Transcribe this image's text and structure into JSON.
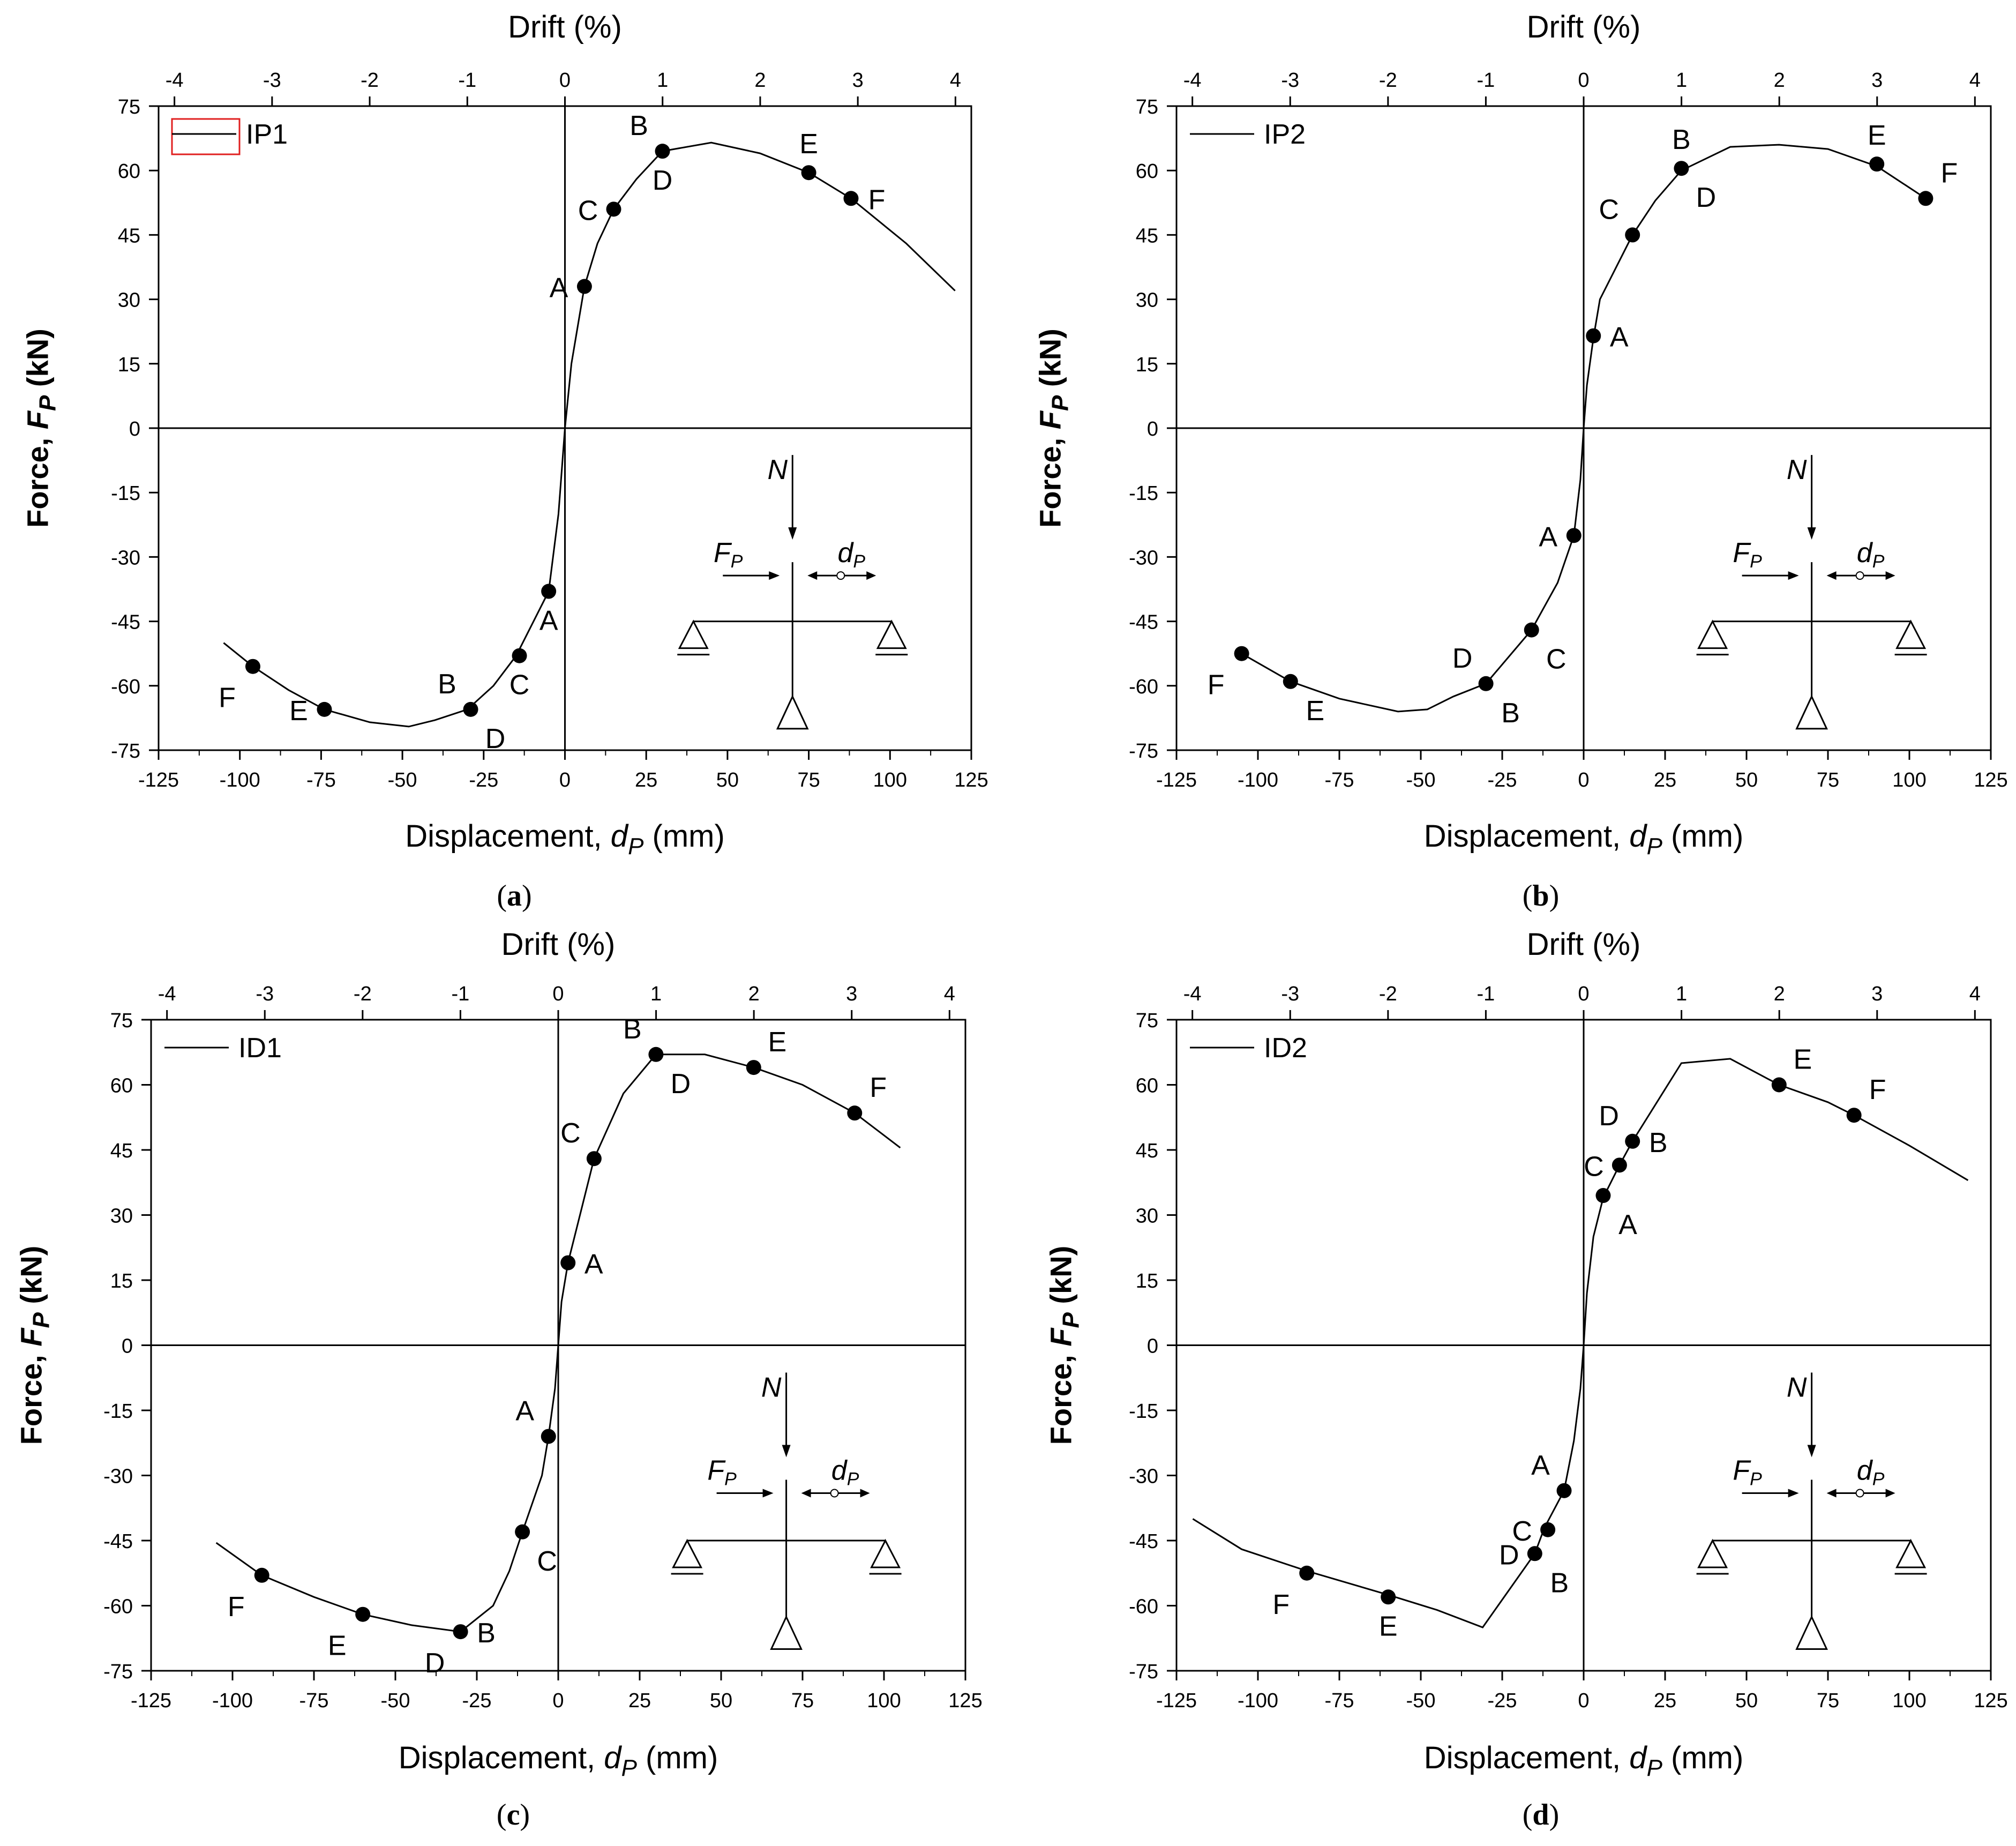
{
  "chart_data": [
    {
      "type": "line",
      "panel_label": "(a)",
      "label_letter": "a",
      "legend": "IP1",
      "legend_box_color": "#e02020",
      "xlabel_prefix": "Displacement, ",
      "xlabel_var": "d",
      "xlabel_sub": "P",
      "xlabel_suffix": " (mm)",
      "ylabel_prefix": "Force, ",
      "ylabel_var": "F",
      "ylabel_sub": "P",
      "ylabel_suffix": " (kN)",
      "top_label": "Drift (%)",
      "xlim": [
        -125,
        125
      ],
      "ylim": [
        -75,
        75
      ],
      "xticks": [
        -125,
        -100,
        -75,
        -50,
        -25,
        0,
        25,
        50,
        75,
        100,
        125
      ],
      "yticks": [
        -75,
        -60,
        -45,
        -30,
        -15,
        0,
        15,
        30,
        45,
        60,
        75
      ],
      "drift_ticks": [
        -4,
        -3,
        -2,
        -1,
        0,
        1,
        2,
        3,
        4
      ],
      "drift_per_mm": 0.0333,
      "curve": [
        [
          -105,
          -50
        ],
        [
          -96,
          -55.5
        ],
        [
          -85,
          -61
        ],
        [
          -74,
          -65.5
        ],
        [
          -60,
          -68.5
        ],
        [
          -48,
          -69.5
        ],
        [
          -40,
          -68
        ],
        [
          -30,
          -65.5
        ],
        [
          -22,
          -60
        ],
        [
          -15,
          -53
        ],
        [
          -5,
          -38
        ],
        [
          -2,
          -20
        ],
        [
          0,
          0
        ],
        [
          2,
          15
        ],
        [
          6,
          33
        ],
        [
          10,
          43
        ],
        [
          15,
          51
        ],
        [
          22,
          58
        ],
        [
          30,
          64.5
        ],
        [
          45,
          66.5
        ],
        [
          60,
          64
        ],
        [
          75,
          59.5
        ],
        [
          88,
          53.5
        ],
        [
          105,
          43
        ],
        [
          120,
          32
        ]
      ],
      "points": [
        {
          "label": "A",
          "x": 6,
          "y": 33,
          "pos": "left"
        },
        {
          "label": "C",
          "x": 15,
          "y": 51,
          "pos": "left"
        },
        {
          "label": "B",
          "x": 30,
          "y": 64.5,
          "pos": "upleft"
        },
        {
          "label": "D",
          "x": 30,
          "y": 64.5,
          "pos": "below"
        },
        {
          "label": "E",
          "x": 75,
          "y": 59.5,
          "pos": "up"
        },
        {
          "label": "F",
          "x": 88,
          "y": 53.5,
          "pos": "right"
        },
        {
          "label": "A",
          "x": -5,
          "y": -38,
          "pos": "below"
        },
        {
          "label": "C",
          "x": -14,
          "y": -53,
          "pos": "below"
        },
        {
          "label": "B",
          "x": -29,
          "y": -65.5,
          "pos": "upleft"
        },
        {
          "label": "D",
          "x": -29,
          "y": -65.5,
          "pos": "belowright"
        },
        {
          "label": "E",
          "x": -74,
          "y": -65.5,
          "pos": "left"
        },
        {
          "label": "F",
          "x": -96,
          "y": -55.5,
          "pos": "belowleft"
        }
      ]
    },
    {
      "type": "line",
      "panel_label": "(b)",
      "label_letter": "b",
      "legend": "IP2",
      "xlabel_prefix": "Displacement, ",
      "xlabel_var": "d",
      "xlabel_sub": "P",
      "xlabel_suffix": " (mm)",
      "ylabel_prefix": "Force, ",
      "ylabel_var": "F",
      "ylabel_sub": "P",
      "ylabel_suffix": " (kN)",
      "top_label": "Drift (%)",
      "xlim": [
        -125,
        125
      ],
      "ylim": [
        -75,
        75
      ],
      "xticks": [
        -125,
        -100,
        -75,
        -50,
        -25,
        0,
        25,
        50,
        75,
        100,
        125
      ],
      "yticks": [
        -75,
        -60,
        -45,
        -30,
        -15,
        0,
        15,
        30,
        45,
        60,
        75
      ],
      "drift_ticks": [
        -4,
        -3,
        -2,
        -1,
        0,
        1,
        2,
        3,
        4
      ],
      "drift_per_mm": 0.0333,
      "curve": [
        [
          -105,
          -52.5
        ],
        [
          -90,
          -59
        ],
        [
          -75,
          -63
        ],
        [
          -57,
          -66
        ],
        [
          -48,
          -65.5
        ],
        [
          -40,
          -62.5
        ],
        [
          -30,
          -59.5
        ],
        [
          -16,
          -47
        ],
        [
          -8,
          -36
        ],
        [
          -3,
          -25
        ],
        [
          -1,
          -12
        ],
        [
          0,
          0
        ],
        [
          1,
          10
        ],
        [
          3,
          21
        ],
        [
          5,
          30
        ],
        [
          15,
          45
        ],
        [
          22,
          53
        ],
        [
          30,
          60
        ],
        [
          45,
          65.5
        ],
        [
          60,
          66
        ],
        [
          75,
          65
        ],
        [
          90,
          61
        ],
        [
          98,
          57
        ],
        [
          105,
          53.5
        ]
      ],
      "points": [
        {
          "label": "A",
          "x": 3,
          "y": 21.5,
          "pos": "right"
        },
        {
          "label": "C",
          "x": 15,
          "y": 45,
          "pos": "upleft"
        },
        {
          "label": "B",
          "x": 30,
          "y": 60.5,
          "pos": "up"
        },
        {
          "label": "D",
          "x": 30,
          "y": 60.5,
          "pos": "belowright"
        },
        {
          "label": "E",
          "x": 90,
          "y": 61.5,
          "pos": "up"
        },
        {
          "label": "F",
          "x": 105,
          "y": 53.5,
          "pos": "upright"
        },
        {
          "label": "A",
          "x": -3,
          "y": -25,
          "pos": "left"
        },
        {
          "label": "C",
          "x": -16,
          "y": -47,
          "pos": "belowright"
        },
        {
          "label": "D",
          "x": -30,
          "y": -59.5,
          "pos": "upleft"
        },
        {
          "label": "B",
          "x": -30,
          "y": -59.5,
          "pos": "belowright"
        },
        {
          "label": "E",
          "x": -90,
          "y": -59,
          "pos": "belowright"
        },
        {
          "label": "F",
          "x": -105,
          "y": -52.5,
          "pos": "belowleft"
        }
      ]
    },
    {
      "type": "line",
      "panel_label": "(c)",
      "label_letter": "c",
      "legend": "ID1",
      "xlabel_prefix": "Displacement, ",
      "xlabel_var": "d",
      "xlabel_sub": "P",
      "xlabel_suffix": " (mm)",
      "ylabel_prefix": "Force, ",
      "ylabel_var": "F",
      "ylabel_sub": "P",
      "ylabel_suffix": " (kN)",
      "top_label": "Drift (%)",
      "xlim": [
        -125,
        125
      ],
      "ylim": [
        -75,
        75
      ],
      "xticks": [
        -125,
        -100,
        -75,
        -50,
        -25,
        0,
        25,
        50,
        75,
        100,
        125
      ],
      "yticks": [
        -75,
        -60,
        -45,
        -30,
        -15,
        0,
        15,
        30,
        45,
        60,
        75
      ],
      "drift_ticks": [
        -4,
        -3,
        -2,
        -1,
        0,
        1,
        2,
        3,
        4
      ],
      "drift_per_mm": 0.0333,
      "curve": [
        [
          -105,
          -45.5
        ],
        [
          -91,
          -53
        ],
        [
          -75,
          -58
        ],
        [
          -60,
          -62
        ],
        [
          -45,
          -64.5
        ],
        [
          -30,
          -66
        ],
        [
          -20,
          -60
        ],
        [
          -15,
          -52
        ],
        [
          -11,
          -43
        ],
        [
          -5,
          -30
        ],
        [
          -3,
          -21
        ],
        [
          -1,
          -10
        ],
        [
          0,
          0
        ],
        [
          1,
          10
        ],
        [
          3,
          19
        ],
        [
          7,
          31
        ],
        [
          11,
          43
        ],
        [
          20,
          58
        ],
        [
          30,
          67
        ],
        [
          45,
          67
        ],
        [
          60,
          64
        ],
        [
          75,
          60
        ],
        [
          91,
          53.5
        ],
        [
          105,
          45.5
        ]
      ],
      "points": [
        {
          "label": "A",
          "x": 3,
          "y": 19,
          "pos": "right"
        },
        {
          "label": "C",
          "x": 11,
          "y": 43,
          "pos": "upleft"
        },
        {
          "label": "B",
          "x": 30,
          "y": 67,
          "pos": "upleft"
        },
        {
          "label": "D",
          "x": 30,
          "y": 67,
          "pos": "belowright"
        },
        {
          "label": "E",
          "x": 60,
          "y": 64,
          "pos": "upright"
        },
        {
          "label": "F",
          "x": 91,
          "y": 53.5,
          "pos": "upright"
        },
        {
          "label": "A",
          "x": -3,
          "y": -21,
          "pos": "upleft"
        },
        {
          "label": "C",
          "x": -11,
          "y": -43,
          "pos": "belowright"
        },
        {
          "label": "D",
          "x": -30,
          "y": -66,
          "pos": "belowleft"
        },
        {
          "label": "B",
          "x": -30,
          "y": -66,
          "pos": "right"
        },
        {
          "label": "E",
          "x": -60,
          "y": -62,
          "pos": "belowleft"
        },
        {
          "label": "F",
          "x": -91,
          "y": -53,
          "pos": "belowleft"
        }
      ]
    },
    {
      "type": "line",
      "panel_label": "(d)",
      "label_letter": "d",
      "legend": "ID2",
      "xlabel_prefix": "Displacement, ",
      "xlabel_var": "d",
      "xlabel_sub": "P",
      "xlabel_suffix": " (mm)",
      "ylabel_prefix": "Force, ",
      "ylabel_var": "F",
      "ylabel_sub": "P",
      "ylabel_suffix": " (kN)",
      "top_label": "Drift (%)",
      "xlim": [
        -125,
        125
      ],
      "ylim": [
        -75,
        75
      ],
      "xticks": [
        -125,
        -100,
        -75,
        -50,
        -25,
        0,
        25,
        50,
        75,
        100,
        125
      ],
      "yticks": [
        -75,
        -60,
        -45,
        -30,
        -15,
        0,
        15,
        30,
        45,
        60,
        75
      ],
      "drift_ticks": [
        -4,
        -3,
        -2,
        -1,
        0,
        1,
        2,
        3,
        4
      ],
      "drift_per_mm": 0.0333,
      "curve": [
        [
          -120,
          -40
        ],
        [
          -105,
          -47
        ],
        [
          -85,
          -52
        ],
        [
          -60,
          -57.5
        ],
        [
          -45,
          -61
        ],
        [
          -31,
          -65
        ],
        [
          -15,
          -48
        ],
        [
          -12,
          -42
        ],
        [
          -6,
          -33.5
        ],
        [
          -3,
          -22
        ],
        [
          -1,
          -10
        ],
        [
          0,
          0
        ],
        [
          1,
          12
        ],
        [
          3,
          25
        ],
        [
          6,
          34
        ],
        [
          11,
          41.5
        ],
        [
          15,
          47
        ],
        [
          30,
          65
        ],
        [
          45,
          66
        ],
        [
          60,
          60
        ],
        [
          75,
          56
        ],
        [
          83,
          53
        ],
        [
          100,
          46
        ],
        [
          118,
          38
        ]
      ],
      "points": [
        {
          "label": "A",
          "x": 6,
          "y": 34.5,
          "pos": "belowright"
        },
        {
          "label": "C",
          "x": 11,
          "y": 41.5,
          "pos": "left"
        },
        {
          "label": "D",
          "x": 15,
          "y": 47,
          "pos": "upleft"
        },
        {
          "label": "B",
          "x": 15,
          "y": 47,
          "pos": "right"
        },
        {
          "label": "E",
          "x": 60,
          "y": 60,
          "pos": "upright"
        },
        {
          "label": "F",
          "x": 83,
          "y": 53,
          "pos": "upright"
        },
        {
          "label": "A",
          "x": -6,
          "y": -33.5,
          "pos": "upleft"
        },
        {
          "label": "C",
          "x": -11,
          "y": -42.5,
          "pos": "left"
        },
        {
          "label": "D",
          "x": -15,
          "y": -48,
          "pos": "left"
        },
        {
          "label": "B",
          "x": -15,
          "y": -48,
          "pos": "belowright"
        },
        {
          "label": "E",
          "x": -60,
          "y": -58,
          "pos": "below"
        },
        {
          "label": "F",
          "x": -85,
          "y": -52.5,
          "pos": "belowleft"
        }
      ]
    }
  ],
  "schematic": {
    "axial_label": "N",
    "force_var": "F",
    "force_sub": "P",
    "disp_var": "d",
    "disp_sub": "P"
  }
}
